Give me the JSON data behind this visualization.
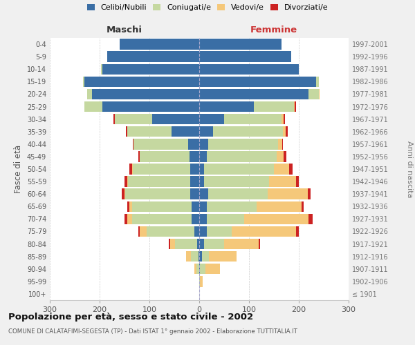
{
  "age_groups": [
    "100+",
    "95-99",
    "90-94",
    "85-89",
    "80-84",
    "75-79",
    "70-74",
    "65-69",
    "60-64",
    "55-59",
    "50-54",
    "45-49",
    "40-44",
    "35-39",
    "30-34",
    "25-29",
    "20-24",
    "15-19",
    "10-14",
    "5-9",
    "0-4"
  ],
  "birth_years": [
    "≤ 1901",
    "1902-1906",
    "1907-1911",
    "1912-1916",
    "1917-1921",
    "1922-1926",
    "1927-1931",
    "1932-1936",
    "1937-1941",
    "1942-1946",
    "1947-1951",
    "1952-1956",
    "1957-1961",
    "1962-1966",
    "1967-1971",
    "1972-1976",
    "1977-1981",
    "1982-1986",
    "1987-1991",
    "1992-1996",
    "1997-2001"
  ],
  "maschi": {
    "celibi": [
      0,
      0,
      0,
      2,
      4,
      10,
      15,
      15,
      18,
      18,
      18,
      20,
      22,
      55,
      95,
      195,
      215,
      230,
      195,
      185,
      160
    ],
    "coniugati": [
      0,
      0,
      5,
      15,
      45,
      95,
      120,
      120,
      130,
      125,
      115,
      100,
      110,
      90,
      75,
      35,
      10,
      3,
      2,
      0,
      0
    ],
    "vedovi": [
      0,
      0,
      5,
      10,
      10,
      15,
      10,
      5,
      2,
      2,
      2,
      0,
      0,
      0,
      0,
      0,
      0,
      0,
      0,
      0,
      0
    ],
    "divorziati": [
      0,
      0,
      0,
      0,
      2,
      2,
      5,
      5,
      5,
      5,
      5,
      2,
      2,
      2,
      2,
      0,
      0,
      0,
      0,
      0,
      0
    ]
  },
  "femmine": {
    "nubili": [
      0,
      0,
      2,
      5,
      10,
      15,
      15,
      15,
      18,
      10,
      10,
      15,
      18,
      28,
      50,
      110,
      220,
      235,
      200,
      185,
      165
    ],
    "coniugate": [
      0,
      2,
      10,
      15,
      40,
      50,
      75,
      100,
      120,
      130,
      140,
      140,
      140,
      140,
      115,
      80,
      20,
      5,
      0,
      0,
      0
    ],
    "vedove": [
      0,
      5,
      30,
      55,
      70,
      130,
      130,
      90,
      80,
      55,
      30,
      15,
      8,
      5,
      5,
      2,
      2,
      0,
      0,
      0,
      0
    ],
    "divorziate": [
      0,
      0,
      0,
      0,
      2,
      5,
      8,
      5,
      5,
      5,
      8,
      5,
      2,
      5,
      2,
      2,
      0,
      0,
      0,
      0,
      0
    ]
  },
  "colors": {
    "celibi_nubili": "#3a6ea5",
    "coniugati": "#c5d8a0",
    "vedovi": "#f5c87a",
    "divorziati": "#cc2222"
  },
  "xlim": 300,
  "title": "Popolazione per età, sesso e stato civile - 2002",
  "subtitle": "COMUNE DI CALATAFIMI-SEGESTA (TP) - Dati ISTAT 1° gennaio 2002 - Elaborazione TUTTITALIA.IT",
  "ylabel_left": "Fasce di età",
  "ylabel_right": "Anni di nascita",
  "xlabel_maschi": "Maschi",
  "xlabel_femmine": "Femmine",
  "bg_color": "#f0f0f0",
  "plot_bg": "#ffffff"
}
